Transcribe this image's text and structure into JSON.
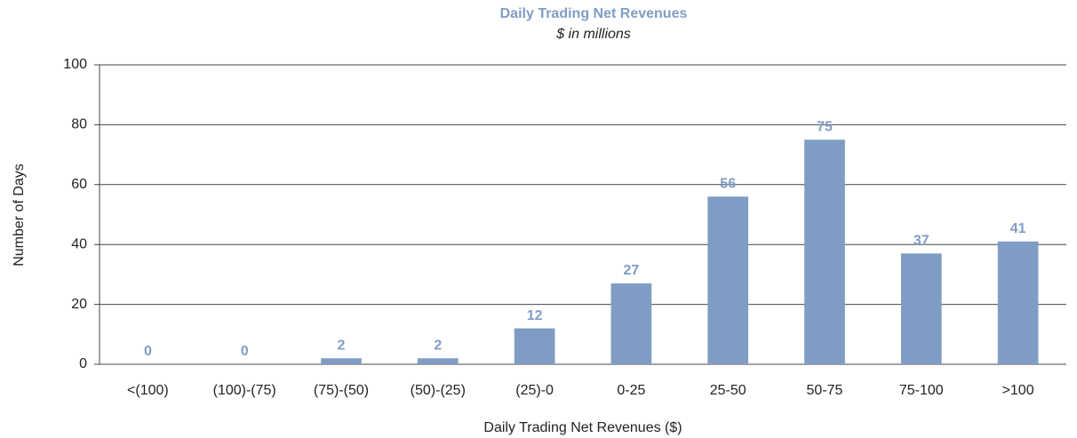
{
  "chart_data": {
    "type": "bar",
    "title": "Daily Trading Net Revenues",
    "subtitle": "$ in millions",
    "x_label": "Daily Trading Net Revenues ($)",
    "y_label": "Number of Days",
    "categories": [
      "<(100)",
      "(100)-(75)",
      "(75)-(50)",
      "(50)-(25)",
      "(25)-0",
      "0-25",
      "25-50",
      "50-75",
      "75-100",
      ">100"
    ],
    "values": [
      0,
      0,
      2,
      2,
      12,
      27,
      56,
      75,
      37,
      41
    ],
    "color": "#7f9dc4",
    "ylim": [
      0,
      100
    ],
    "yticks": [
      0,
      20,
      40,
      60,
      80,
      100
    ],
    "grid": true
  }
}
